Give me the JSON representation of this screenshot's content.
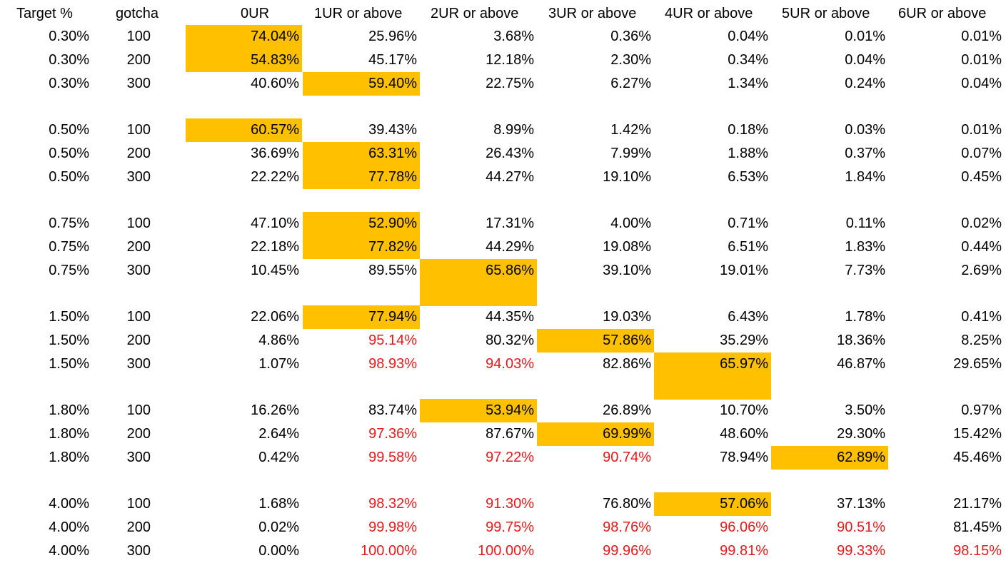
{
  "headers": [
    "Target %",
    "gotcha",
    "0UR",
    "1UR or above",
    "2UR or above",
    "3UR or above",
    "4UR or above",
    "5UR or above",
    "6UR or above"
  ],
  "colors": {
    "highlight": "#ffc000",
    "red_text": "#e31a1c",
    "text": "#000000",
    "background": "#ffffff"
  },
  "rows": [
    {
      "target": "0.30%",
      "gotcha": "100",
      "values": [
        "74.04%",
        "25.96%",
        "3.68%",
        "0.36%",
        "0.04%",
        "0.01%",
        "0.01%"
      ],
      "highlight": 0,
      "red": []
    },
    {
      "target": "0.30%",
      "gotcha": "200",
      "values": [
        "54.83%",
        "45.17%",
        "12.18%",
        "2.30%",
        "0.34%",
        "0.04%",
        "0.01%"
      ],
      "highlight": 0,
      "red": []
    },
    {
      "target": "0.30%",
      "gotcha": "300",
      "values": [
        "40.60%",
        "59.40%",
        "22.75%",
        "6.27%",
        "1.34%",
        "0.24%",
        "0.04%"
      ],
      "highlight": 1,
      "red": []
    },
    {
      "target": "0.50%",
      "gotcha": "100",
      "values": [
        "60.57%",
        "39.43%",
        "8.99%",
        "1.42%",
        "0.18%",
        "0.03%",
        "0.01%"
      ],
      "highlight": 0,
      "red": []
    },
    {
      "target": "0.50%",
      "gotcha": "200",
      "values": [
        "36.69%",
        "63.31%",
        "26.43%",
        "7.99%",
        "1.88%",
        "0.37%",
        "0.07%"
      ],
      "highlight": 1,
      "red": []
    },
    {
      "target": "0.50%",
      "gotcha": "300",
      "values": [
        "22.22%",
        "77.78%",
        "44.27%",
        "19.10%",
        "6.53%",
        "1.84%",
        "0.45%"
      ],
      "highlight": 1,
      "red": []
    },
    {
      "target": "0.75%",
      "gotcha": "100",
      "values": [
        "47.10%",
        "52.90%",
        "17.31%",
        "4.00%",
        "0.71%",
        "0.11%",
        "0.02%"
      ],
      "highlight": 1,
      "red": []
    },
    {
      "target": "0.75%",
      "gotcha": "200",
      "values": [
        "22.18%",
        "77.82%",
        "44.29%",
        "19.08%",
        "6.51%",
        "1.83%",
        "0.44%"
      ],
      "highlight": 1,
      "red": []
    },
    {
      "target": "0.75%",
      "gotcha": "300",
      "values": [
        "10.45%",
        "89.55%",
        "65.86%",
        "39.10%",
        "19.01%",
        "7.73%",
        "2.69%"
      ],
      "highlight": 2,
      "red": []
    },
    {
      "target": "1.50%",
      "gotcha": "100",
      "values": [
        "22.06%",
        "77.94%",
        "44.35%",
        "19.03%",
        "6.43%",
        "1.78%",
        "0.41%"
      ],
      "highlight": 1,
      "red": []
    },
    {
      "target": "1.50%",
      "gotcha": "200",
      "values": [
        "4.86%",
        "95.14%",
        "80.32%",
        "57.86%",
        "35.29%",
        "18.36%",
        "8.25%"
      ],
      "highlight": 3,
      "red": [
        1
      ]
    },
    {
      "target": "1.50%",
      "gotcha": "300",
      "values": [
        "1.07%",
        "98.93%",
        "94.03%",
        "82.86%",
        "65.97%",
        "46.87%",
        "29.65%"
      ],
      "highlight": 4,
      "red": [
        1,
        2
      ]
    },
    {
      "target": "1.80%",
      "gotcha": "100",
      "values": [
        "16.26%",
        "83.74%",
        "53.94%",
        "26.89%",
        "10.70%",
        "3.50%",
        "0.97%"
      ],
      "highlight": 2,
      "red": []
    },
    {
      "target": "1.80%",
      "gotcha": "200",
      "values": [
        "2.64%",
        "97.36%",
        "87.67%",
        "69.99%",
        "48.60%",
        "29.30%",
        "15.42%"
      ],
      "highlight": 3,
      "red": [
        1
      ]
    },
    {
      "target": "1.80%",
      "gotcha": "300",
      "values": [
        "0.42%",
        "99.58%",
        "97.22%",
        "90.74%",
        "78.94%",
        "62.89%",
        "45.46%"
      ],
      "highlight": 5,
      "red": [
        1,
        2,
        3
      ]
    },
    {
      "target": "4.00%",
      "gotcha": "100",
      "values": [
        "1.68%",
        "98.32%",
        "91.30%",
        "76.80%",
        "57.06%",
        "37.13%",
        "21.17%"
      ],
      "highlight": 4,
      "red": [
        1,
        2
      ]
    },
    {
      "target": "4.00%",
      "gotcha": "200",
      "values": [
        "0.02%",
        "99.98%",
        "99.75%",
        "98.76%",
        "96.06%",
        "90.51%",
        "81.45%"
      ],
      "highlight": null,
      "red": [
        1,
        2,
        3,
        4,
        5
      ]
    },
    {
      "target": "4.00%",
      "gotcha": "300",
      "values": [
        "0.00%",
        "100.00%",
        "100.00%",
        "99.96%",
        "99.81%",
        "99.33%",
        "98.15%"
      ],
      "highlight": null,
      "red": [
        1,
        2,
        3,
        4,
        5,
        6
      ]
    }
  ]
}
